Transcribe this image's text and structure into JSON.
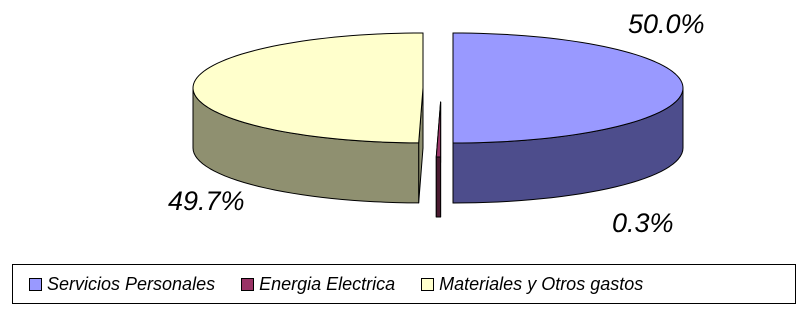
{
  "chart_data": {
    "type": "pie",
    "three_d": true,
    "exploded": true,
    "categories": [
      "Servicios Personales",
      "Energia Electrica",
      "Materiales y Otros gastos"
    ],
    "values": [
      50.0,
      0.3,
      49.7
    ],
    "data_labels": [
      "50.0%",
      "0.3%",
      "49.7%"
    ],
    "colors": [
      "#9999ff",
      "#993366",
      "#ffffcc"
    ],
    "side_colors": [
      "#4d4d8c",
      "#4a1a30",
      "#8f9070"
    ],
    "legend": {
      "position": "bottom",
      "items": [
        "Servicios Personales",
        "Energia Electrica",
        "Materiales y Otros gastos"
      ]
    }
  }
}
